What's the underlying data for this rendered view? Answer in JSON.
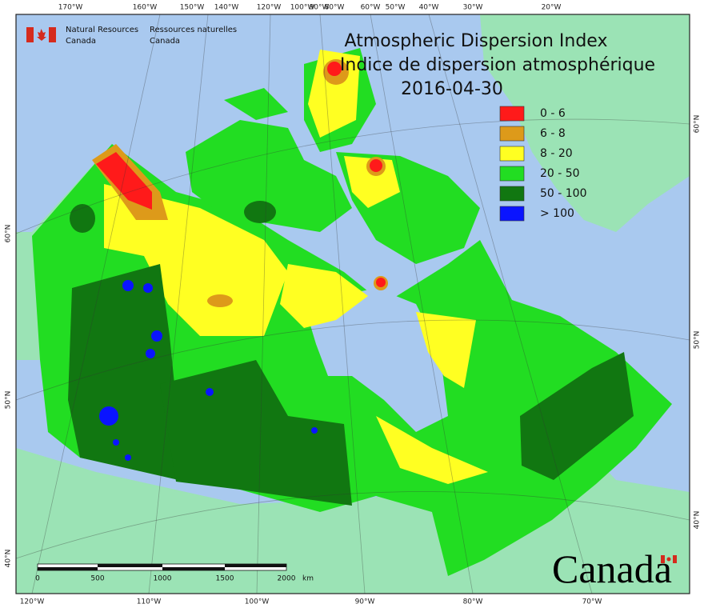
{
  "header": {
    "org_en_1": "Natural Resources",
    "org_en_2": "Canada",
    "org_fr_1": "Ressources naturelles",
    "org_fr_2": "Canada"
  },
  "title": {
    "en": "Atmospheric Dispersion Index",
    "fr": "Indice de dispersion atmosphérique",
    "date": "2016-04-30"
  },
  "legend": [
    {
      "label": "0 - 6",
      "color": "#ff1a1a"
    },
    {
      "label": "6 - 8",
      "color": "#dd9a1a"
    },
    {
      "label": "8 - 20",
      "color": "#ffff22"
    },
    {
      "label": "20 - 50",
      "color": "#22dd22"
    },
    {
      "label": "50 - 100",
      "color": "#117711"
    },
    {
      "label": "> 100",
      "color": "#0a14ff"
    }
  ],
  "graticule": {
    "top": [
      "170°W",
      "160°W",
      "150°W",
      "140°W",
      "120°W",
      "100°W",
      "90°W",
      "80°W",
      "60°W",
      "50°W",
      "40°W",
      "30°W",
      "20°W"
    ],
    "bottom": [
      "120°W",
      "110°W",
      "100°W",
      "90°W",
      "80°W",
      "70°W"
    ],
    "left": [
      "60°N",
      "50°N",
      "40°N"
    ],
    "right": [
      "60°N",
      "50°N",
      "40°N"
    ]
  },
  "scale_bar": {
    "labels": [
      "0",
      "500",
      "1000",
      "1500",
      "2000"
    ],
    "unit": "km"
  },
  "wordmark": "Canada"
}
